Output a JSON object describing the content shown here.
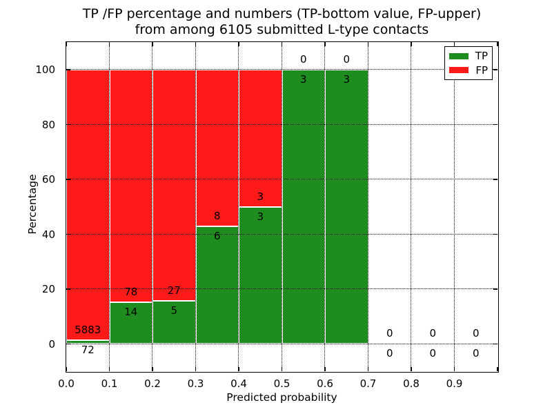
{
  "figure": {
    "background": "#ffffff"
  },
  "chart_data": {
    "type": "bar",
    "stacked": true,
    "title_lines": [
      "TP /FP percentage and numbers (TP-bottom value, FP-upper)",
      "from among 6105 submitted L-type contacts"
    ],
    "xlabel": "Predicted probability",
    "ylabel": "Percentage",
    "total_contacts": 6105,
    "xlim": [
      0.0,
      1.0
    ],
    "ylim": [
      -10,
      110
    ],
    "xtick_labels": [
      "0.0",
      "0.1",
      "0.2",
      "0.3",
      "0.4",
      "0.5",
      "0.6",
      "0.7",
      "0.8",
      "0.9"
    ],
    "ytick_values": [
      0,
      20,
      40,
      60,
      80,
      100
    ],
    "grid": "dotted, drawn above bars",
    "bin_width": 0.1,
    "bin_starts": [
      0.0,
      0.1,
      0.2,
      0.3,
      0.4,
      0.5,
      0.6,
      0.7,
      0.8,
      0.9
    ],
    "series": [
      {
        "name": "TP",
        "color": "#1e8c1e",
        "counts": [
          72,
          14,
          5,
          6,
          3,
          3,
          3,
          0,
          0,
          0
        ]
      },
      {
        "name": "FP",
        "color": "#ff1a1a",
        "counts": [
          5883,
          78,
          27,
          8,
          3,
          0,
          0,
          0,
          0,
          0
        ]
      }
    ],
    "tp_percent_per_bin": [
      1.21,
      15.22,
      15.63,
      42.86,
      50.0,
      100.0,
      100.0,
      null,
      null,
      null
    ],
    "legend": {
      "position": "upper right",
      "entries": [
        {
          "label": "TP",
          "color": "#1e8c1e"
        },
        {
          "label": "FP",
          "color": "#ff1a1a"
        }
      ]
    }
  }
}
